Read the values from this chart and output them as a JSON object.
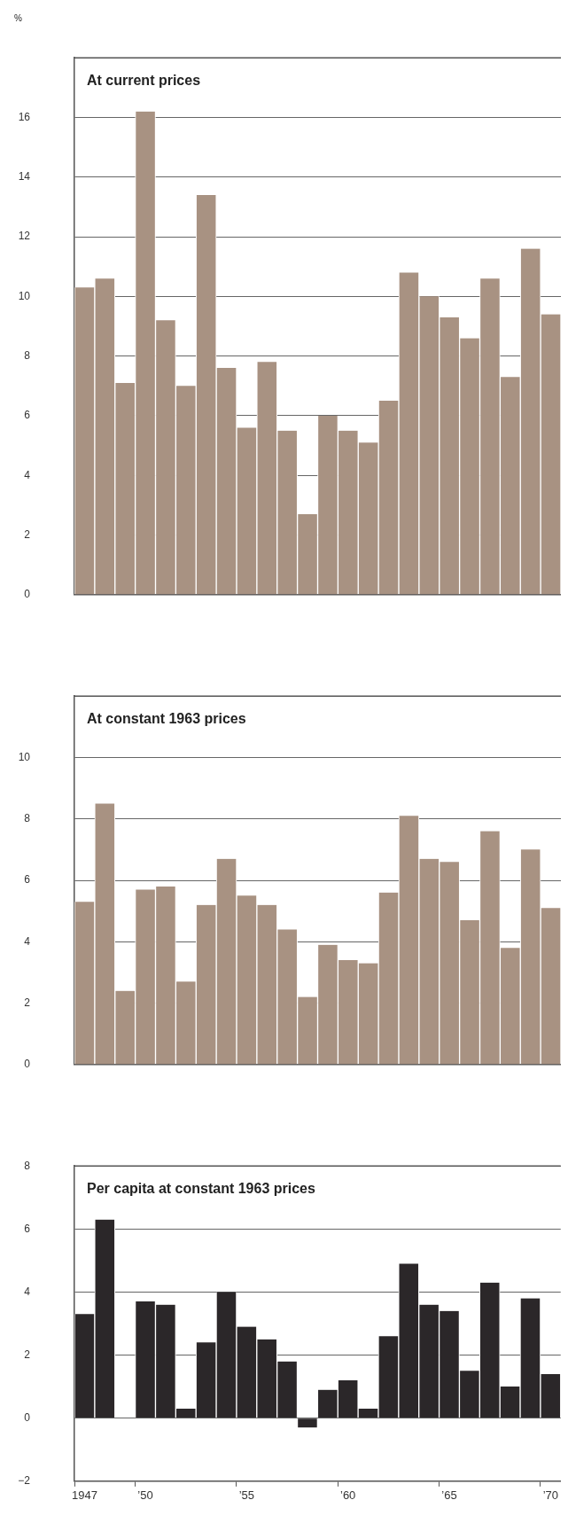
{
  "chart_data": [
    {
      "type": "bar",
      "title": "At current prices",
      "ylabel": "%",
      "categories": [
        null,
        null,
        null,
        null,
        null,
        null,
        null,
        null,
        null,
        null,
        null,
        null,
        null,
        null,
        null,
        null,
        null,
        null,
        null,
        null,
        null,
        null,
        null,
        null
      ],
      "values": [
        10.3,
        10.6,
        7.1,
        16.2,
        9.2,
        7.0,
        13.4,
        7.6,
        5.6,
        7.8,
        5.5,
        2.7,
        6.0,
        5.5,
        5.1,
        6.5,
        10.8,
        10.0,
        9.3,
        8.6,
        10.6,
        7.3,
        11.6,
        9.4
      ],
      "color": "#a89282",
      "ylim": [
        0,
        18
      ],
      "yticks": [
        0,
        2,
        4,
        6,
        8,
        10,
        12,
        14,
        16
      ],
      "grid": "y",
      "tick_labels": "y"
    },
    {
      "type": "bar",
      "title": "At constant 1963 prices",
      "categories": [
        null,
        null,
        null,
        null,
        null,
        null,
        null,
        null,
        null,
        null,
        null,
        null,
        null,
        null,
        null,
        null,
        null,
        null,
        null,
        null,
        null,
        null,
        null,
        null
      ],
      "values": [
        5.3,
        8.5,
        2.4,
        5.7,
        5.8,
        2.7,
        5.2,
        6.7,
        5.5,
        5.2,
        4.4,
        2.2,
        3.9,
        3.4,
        3.3,
        5.6,
        8.1,
        6.7,
        6.6,
        4.7,
        7.6,
        3.8,
        7.0,
        5.1
      ],
      "color": "#a89282",
      "ylim": [
        0,
        12
      ],
      "yticks": [
        0,
        2,
        4,
        6,
        8,
        10
      ],
      "grid": "y",
      "tick_labels": "y"
    },
    {
      "type": "bar",
      "title": "Per capita at constant 1963 prices",
      "categories": [
        "1947",
        null,
        null,
        "’50",
        null,
        null,
        null,
        null,
        "’55",
        null,
        null,
        null,
        null,
        "’60",
        null,
        null,
        null,
        null,
        "’65",
        null,
        null,
        null,
        null,
        "’70"
      ],
      "values": [
        3.3,
        6.3,
        0,
        3.7,
        3.6,
        0.3,
        2.4,
        4.0,
        2.9,
        2.5,
        1.8,
        -0.3,
        0.9,
        1.2,
        0.3,
        2.6,
        4.9,
        3.6,
        3.4,
        1.5,
        4.3,
        1.0,
        3.8,
        1.4
      ],
      "color": "#2b2729",
      "ylim": [
        -2,
        8
      ],
      "yticks": [
        {
          "value": -2,
          "label": "−2"
        },
        0,
        2,
        4,
        6,
        8
      ],
      "grid": "y"
    }
  ]
}
